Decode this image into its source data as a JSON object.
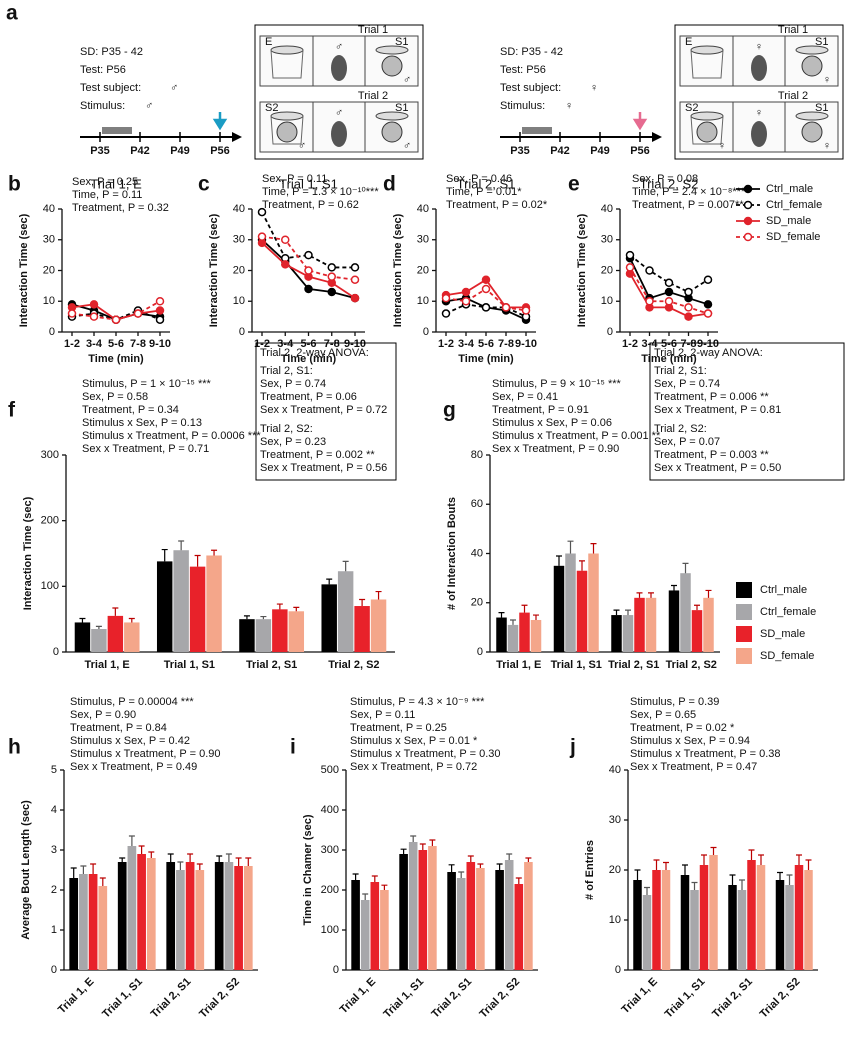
{
  "panel_a": {
    "label": "a",
    "trials": [
      "Trial 1",
      "Trial 2"
    ],
    "chambers": [
      "E",
      "S1",
      "S2"
    ],
    "left": {
      "sd": "SD: P35 - 42",
      "test": "Test: P56",
      "subject_label": "Test subject:",
      "subject": "♂",
      "stimulus_label": "Stimulus:",
      "stimulus": "♂",
      "color": "#1a9cc4",
      "timeline": [
        "P35",
        "P42",
        "P49",
        "P56"
      ]
    },
    "right": {
      "sd": "SD: P35 - 42",
      "test": "Test: P56",
      "subject_label": "Test subject:",
      "subject": "♀",
      "stimulus_label": "Stimulus:",
      "stimulus": "♀",
      "color": "#e66b90",
      "timeline": [
        "P35",
        "P42",
        "P49",
        "P56"
      ]
    }
  },
  "chart_data": [
    {
      "type": "line",
      "label": "b",
      "title": "Trial 1, E",
      "ylabel": "Interaction Time (sec)",
      "xlabel": "Time (min)",
      "categories": [
        "1-2",
        "3-4",
        "5-6",
        "7-8",
        "9-10"
      ],
      "ylim": [
        0,
        40
      ],
      "yticks": [
        0,
        10,
        20,
        30,
        40
      ],
      "annotations": [
        "Sex, P = 0.25",
        "Time, P = 0.11",
        "Treatment, P = 0.32"
      ],
      "series": [
        {
          "name": "Ctrl_male",
          "color": "#000000",
          "marker": "filled",
          "dash": false,
          "values": [
            9,
            7,
            4,
            6,
            5
          ]
        },
        {
          "name": "Ctrl_female",
          "color": "#000000",
          "marker": "open",
          "dash": true,
          "values": [
            5,
            6,
            4,
            7,
            4
          ]
        },
        {
          "name": "SD_male",
          "color": "#e0232b",
          "marker": "filled",
          "dash": false,
          "values": [
            8,
            9,
            4,
            6,
            7
          ]
        },
        {
          "name": "SD_female",
          "color": "#e0232b",
          "marker": "open",
          "dash": true,
          "values": [
            6,
            5,
            4,
            6,
            10
          ]
        }
      ]
    },
    {
      "type": "line",
      "label": "c",
      "title": "Trial 1, S1",
      "ylabel": "Interaction Time (sec)",
      "xlabel": "Time (min)",
      "categories": [
        "1-2",
        "3-4",
        "5-6",
        "7-8",
        "9-10"
      ],
      "ylim": [
        0,
        40
      ],
      "yticks": [
        0,
        10,
        20,
        30,
        40
      ],
      "annotations": [
        "Sex, P = 0.11",
        "Time, P = 1.3 × 10⁻¹⁰***",
        "Treatment, P = 0.62"
      ],
      "series": [
        {
          "name": "Ctrl_male",
          "color": "#000000",
          "marker": "filled",
          "dash": false,
          "values": [
            30,
            23,
            14,
            13,
            11
          ]
        },
        {
          "name": "Ctrl_female",
          "color": "#000000",
          "marker": "open",
          "dash": true,
          "values": [
            39,
            24,
            25,
            21,
            21
          ]
        },
        {
          "name": "SD_male",
          "color": "#e0232b",
          "marker": "filled",
          "dash": false,
          "values": [
            29,
            22,
            18,
            16,
            11
          ]
        },
        {
          "name": "SD_female",
          "color": "#e0232b",
          "marker": "open",
          "dash": true,
          "values": [
            31,
            30,
            20,
            18,
            17
          ]
        }
      ]
    },
    {
      "type": "line",
      "label": "d",
      "title": "Trial 2, S1",
      "ylabel": "Interaction Time (sec)",
      "xlabel": "Time (min)",
      "categories": [
        "1-2",
        "3-4",
        "5-6",
        "7-8",
        "9-10"
      ],
      "ylim": [
        0,
        40
      ],
      "yticks": [
        0,
        10,
        20,
        30,
        40
      ],
      "annotations": [
        "Sex, P = 0.46",
        "Time, P = 0.01*",
        "Treatment, P = 0.02*"
      ],
      "series": [
        {
          "name": "Ctrl_male",
          "color": "#000000",
          "marker": "filled",
          "dash": false,
          "values": [
            10,
            11,
            8,
            7,
            4
          ]
        },
        {
          "name": "Ctrl_female",
          "color": "#000000",
          "marker": "open",
          "dash": true,
          "values": [
            6,
            9,
            8,
            8,
            5
          ]
        },
        {
          "name": "SD_male",
          "color": "#e0232b",
          "marker": "filled",
          "dash": false,
          "values": [
            12,
            13,
            17,
            8,
            8
          ]
        },
        {
          "name": "SD_female",
          "color": "#e0232b",
          "marker": "open",
          "dash": true,
          "values": [
            11,
            10,
            14,
            8,
            7
          ]
        }
      ]
    },
    {
      "type": "line",
      "label": "e",
      "title": "Trial 2, S2",
      "ylabel": "Interaction Time (sec)",
      "xlabel": "Time (min)",
      "legend": "right",
      "categories": [
        "1-2",
        "3-4",
        "5-6",
        "7-8",
        "9-10"
      ],
      "ylim": [
        0,
        40
      ],
      "yticks": [
        0,
        10,
        20,
        30,
        40
      ],
      "annotations": [
        "Sex, P = 0.08",
        "Time, P = 2.4 × 10⁻⁸***",
        "Treatment, P = 0.007**"
      ],
      "series": [
        {
          "name": "Ctrl_male",
          "color": "#000000",
          "marker": "filled",
          "dash": false,
          "values": [
            24,
            11,
            13,
            11,
            9
          ]
        },
        {
          "name": "Ctrl_female",
          "color": "#000000",
          "marker": "open",
          "dash": true,
          "values": [
            25,
            20,
            16,
            13,
            17
          ]
        },
        {
          "name": "SD_male",
          "color": "#e0232b",
          "marker": "filled",
          "dash": false,
          "values": [
            19,
            8,
            8,
            5,
            6
          ]
        },
        {
          "name": "SD_female",
          "color": "#e0232b",
          "marker": "open",
          "dash": true,
          "values": [
            21,
            10,
            10,
            8,
            6
          ]
        }
      ]
    },
    {
      "type": "bar",
      "label": "f",
      "ylabel": "Interaction Time (sec)",
      "categories": [
        "Trial 1, E",
        "Trial 1, S1",
        "Trial 2, S1",
        "Trial 2, S2"
      ],
      "ylim": [
        0,
        300
      ],
      "yticks": [
        0,
        100,
        200,
        300
      ],
      "annotations": [
        "Stimulus, P = 1 × 10⁻¹⁵ ***",
        "Sex, P = 0.58",
        "Treatment, P = 0.34",
        "Stimulus x Sex, P = 0.13",
        "Stimulus x Treatment, P = 0.0006 ***",
        "Sex x Treatment, P = 0.71"
      ],
      "box": {
        "title": "Trial 2, 2-way ANOVA:",
        "groups": [
          [
            "Trial 2, S1:",
            "Sex, P = 0.74",
            "Treatment, P = 0.06",
            "Sex x Treatment, P = 0.72"
          ],
          [
            "Trial 2, S2:",
            "Sex, P = 0.23",
            "Treatment, P = 0.002 **",
            "Sex x Treatment, P = 0.56"
          ]
        ]
      },
      "series": [
        {
          "name": "Ctrl_male",
          "color": "#000000",
          "values": [
            45,
            138,
            50,
            103
          ],
          "errors": [
            6,
            18,
            5,
            8
          ]
        },
        {
          "name": "Ctrl_female",
          "color": "#a7a7aa",
          "values": [
            35,
            155,
            50,
            123
          ],
          "errors": [
            4,
            14,
            4,
            15
          ]
        },
        {
          "name": "SD_male",
          "color": "#e8222a",
          "values": [
            55,
            130,
            65,
            70
          ],
          "errors": [
            12,
            17,
            8,
            10
          ]
        },
        {
          "name": "SD_female",
          "color": "#f4a68a",
          "values": [
            45,
            147,
            62,
            80
          ],
          "errors": [
            6,
            8,
            6,
            12
          ]
        }
      ]
    },
    {
      "type": "bar",
      "label": "g",
      "ylabel": "# of Interaction Bouts",
      "legend": "right",
      "categories": [
        "Trial 1, E",
        "Trial 1, S1",
        "Trial 2, S1",
        "Trial 2, S2"
      ],
      "ylim": [
        0,
        80
      ],
      "yticks": [
        0,
        20,
        40,
        60,
        80
      ],
      "annotations": [
        "Stimulus, P = 9 × 10⁻¹⁵ ***",
        "Sex, P = 0.41",
        "Treatment, P = 0.91",
        "Stimulus x Sex, P = 0.06",
        "Stimulus x Treatment, P = 0.001 **",
        "Sex x Treatment, P = 0.90"
      ],
      "box": {
        "title": "Trial 2, 2-way ANOVA:",
        "groups": [
          [
            "Trial 2, S1:",
            "Sex, P = 0.74",
            "Treatment, P = 0.006 **",
            "Sex x Treatment, P = 0.81"
          ],
          [
            "Trial 2, S2:",
            "Sex, P = 0.07",
            "Treatment, P = 0.003 **",
            "Sex x Treatment, P = 0.50"
          ]
        ]
      },
      "series": [
        {
          "name": "Ctrl_male",
          "color": "#000000",
          "values": [
            14,
            35,
            15,
            25
          ],
          "errors": [
            2,
            4,
            2,
            2
          ]
        },
        {
          "name": "Ctrl_female",
          "color": "#a7a7aa",
          "values": [
            11,
            40,
            15,
            32
          ],
          "errors": [
            2,
            5,
            2,
            4
          ]
        },
        {
          "name": "SD_male",
          "color": "#e8222a",
          "values": [
            16,
            33,
            22,
            17
          ],
          "errors": [
            3,
            4,
            2,
            2
          ]
        },
        {
          "name": "SD_female",
          "color": "#f4a68a",
          "values": [
            13,
            40,
            22,
            22
          ],
          "errors": [
            2,
            4,
            2,
            3
          ]
        }
      ]
    },
    {
      "type": "bar",
      "label": "h",
      "ylabel": "Average Bout Length (sec)",
      "categories": [
        "Trial 1, E",
        "Trial 1, S1",
        "Trial 2, S1",
        "Trial 2, S2"
      ],
      "ylim": [
        0,
        5
      ],
      "yticks": [
        0,
        1,
        2,
        3,
        4,
        5
      ],
      "annotations": [
        "Stimulus, P = 0.00004 ***",
        "Sex, P = 0.90",
        "Treatment, P = 0.84",
        "Stimulus x Sex, P = 0.42",
        "Stimulus x Treatment, P = 0.90",
        "Sex x Treatment, P = 0.49"
      ],
      "series": [
        {
          "name": "Ctrl_male",
          "color": "#000000",
          "values": [
            2.3,
            2.7,
            2.7,
            2.7
          ],
          "errors": [
            0.25,
            0.1,
            0.2,
            0.15
          ]
        },
        {
          "name": "Ctrl_female",
          "color": "#a7a7aa",
          "values": [
            2.4,
            3.1,
            2.5,
            2.7
          ],
          "errors": [
            0.2,
            0.25,
            0.2,
            0.2
          ]
        },
        {
          "name": "SD_male",
          "color": "#e8222a",
          "values": [
            2.4,
            2.9,
            2.7,
            2.6
          ],
          "errors": [
            0.25,
            0.2,
            0.2,
            0.2
          ]
        },
        {
          "name": "SD_female",
          "color": "#f4a68a",
          "values": [
            2.1,
            2.8,
            2.5,
            2.6
          ],
          "errors": [
            0.2,
            0.15,
            0.15,
            0.2
          ]
        }
      ]
    },
    {
      "type": "bar",
      "label": "i",
      "ylabel": "Time in Chamer (sec)",
      "categories": [
        "Trial 1, E",
        "Trial 1, S1",
        "Trial 2, S1",
        "Trial 2, S2"
      ],
      "ylim": [
        0,
        500
      ],
      "yticks": [
        0,
        100,
        200,
        300,
        400,
        500
      ],
      "annotations": [
        "Stimulus, P = 4.3 × 10⁻⁹ ***",
        "Sex, P = 0.11",
        "Treatment, P = 0.25",
        "Stimulus x Sex, P = 0.01 *",
        "Stimulus x Treatment, P = 0.30",
        "Sex x Treatment, P = 0.72"
      ],
      "series": [
        {
          "name": "Ctrl_male",
          "color": "#000000",
          "values": [
            225,
            290,
            245,
            250
          ],
          "errors": [
            15,
            12,
            18,
            15
          ]
        },
        {
          "name": "Ctrl_female",
          "color": "#a7a7aa",
          "values": [
            175,
            320,
            230,
            275
          ],
          "errors": [
            15,
            15,
            15,
            15
          ]
        },
        {
          "name": "SD_male",
          "color": "#e8222a",
          "values": [
            220,
            300,
            270,
            215
          ],
          "errors": [
            15,
            15,
            15,
            15
          ]
        },
        {
          "name": "SD_female",
          "color": "#f4a68a",
          "values": [
            200,
            310,
            255,
            270
          ],
          "errors": [
            12,
            15,
            10,
            10
          ]
        }
      ]
    },
    {
      "type": "bar",
      "label": "j",
      "ylabel": "# of Entries",
      "categories": [
        "Trial 1, E",
        "Trial 1, S1",
        "Trial 2, S1",
        "Trial 2, S2"
      ],
      "ylim": [
        0,
        40
      ],
      "yticks": [
        0,
        10,
        20,
        30,
        40
      ],
      "annotations": [
        "Stimulus, P = 0.39",
        "Sex, P = 0.65",
        "Treatment, P = 0.02 *",
        "Stimulus x Sex, P = 0.94",
        "Stimulus x Treatment, P = 0.38",
        "Sex x Treatment, P = 0.47"
      ],
      "series": [
        {
          "name": "Ctrl_male",
          "color": "#000000",
          "values": [
            18,
            19,
            17,
            18
          ],
          "errors": [
            2,
            2,
            2,
            1.5
          ]
        },
        {
          "name": "Ctrl_female",
          "color": "#a7a7aa",
          "values": [
            15,
            16,
            16,
            17
          ],
          "errors": [
            1.5,
            1.5,
            2,
            2
          ]
        },
        {
          "name": "SD_male",
          "color": "#e8222a",
          "values": [
            20,
            21,
            22,
            21
          ],
          "errors": [
            2,
            2,
            2,
            2
          ]
        },
        {
          "name": "SD_female",
          "color": "#f4a68a",
          "values": [
            20,
            23,
            21,
            20
          ],
          "errors": [
            1.5,
            1.5,
            2,
            2
          ]
        }
      ]
    }
  ]
}
